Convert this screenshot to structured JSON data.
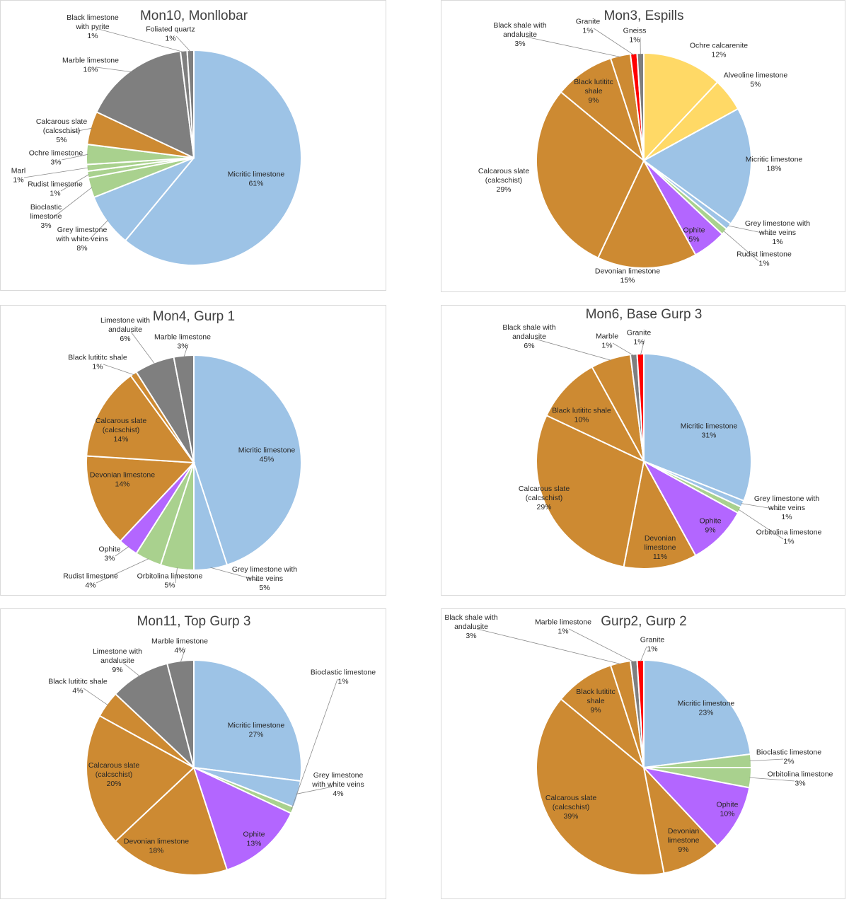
{
  "colors": {
    "blue": "#9dc3e6",
    "grey": "#7f7f7f",
    "orange": "#cd8a32",
    "green": "#a9d18e",
    "purple": "#b366ff",
    "yellow": "#ffd966",
    "red": "#ff0000"
  },
  "chart_data": [
    {
      "type": "pie",
      "title": "Mon10, Monllobar",
      "slices": [
        {
          "label": [
            "Micritic limestone"
          ],
          "value": 61,
          "pct": "61%",
          "color": "blue"
        },
        {
          "label": [
            "Grey limestone",
            "with white veins"
          ],
          "value": 8,
          "pct": "8%",
          "color": "blue"
        },
        {
          "label": [
            "Bioclastic",
            "limestone"
          ],
          "value": 3,
          "pct": "3%",
          "color": "green"
        },
        {
          "label": [
            "Rudist limestone"
          ],
          "value": 1,
          "pct": "1%",
          "color": "green"
        },
        {
          "label": [
            "Marl"
          ],
          "value": 1,
          "pct": "1%",
          "color": "green"
        },
        {
          "label": [
            "Ochre limestone"
          ],
          "value": 3,
          "pct": "3%",
          "color": "green"
        },
        {
          "label": [
            "Calcarous slate",
            "(calcschist)"
          ],
          "value": 5,
          "pct": "5%",
          "color": "orange"
        },
        {
          "label": [
            "Marble limestone"
          ],
          "value": 16,
          "pct": "16%",
          "color": "grey"
        },
        {
          "label": [
            "Black limestone",
            "with pyrite"
          ],
          "value": 1,
          "pct": "1%",
          "color": "grey"
        },
        {
          "label": [
            "Foliated quartz"
          ],
          "value": 1,
          "pct": "1%",
          "color": "grey"
        }
      ]
    },
    {
      "type": "pie",
      "title": "Mon3, Espills",
      "slices": [
        {
          "label": [
            "Ochre calcarenite"
          ],
          "value": 12,
          "pct": "12%",
          "color": "yellow"
        },
        {
          "label": [
            "Alveoline limestone"
          ],
          "value": 5,
          "pct": "5%",
          "color": "yellow"
        },
        {
          "label": [
            "Micritic limestone"
          ],
          "value": 18,
          "pct": "18%",
          "color": "blue"
        },
        {
          "label": [
            "Grey limestone with",
            "white veins"
          ],
          "value": 1,
          "pct": "1%",
          "color": "blue"
        },
        {
          "label": [
            "Rudist limestone"
          ],
          "value": 1,
          "pct": "1%",
          "color": "green"
        },
        {
          "label": [
            "Ophite"
          ],
          "value": 5,
          "pct": "5%",
          "color": "purple"
        },
        {
          "label": [
            "Devonian limestone"
          ],
          "value": 15,
          "pct": "15%",
          "color": "orange"
        },
        {
          "label": [
            "Calcarous slate",
            "(calcschist)"
          ],
          "value": 29,
          "pct": "29%",
          "color": "orange"
        },
        {
          "label": [
            "Black lutititc",
            "shale"
          ],
          "value": 9,
          "pct": "9%",
          "color": "orange"
        },
        {
          "label": [
            "Black shale with",
            "andalusite"
          ],
          "value": 3,
          "pct": "3%",
          "color": "orange"
        },
        {
          "label": [
            "Granite"
          ],
          "value": 1,
          "pct": "1%",
          "color": "red"
        },
        {
          "label": [
            "Gneiss"
          ],
          "value": 1,
          "pct": "1%",
          "color": "grey"
        }
      ]
    },
    {
      "type": "pie",
      "title": "Mon4, Gurp 1",
      "slices": [
        {
          "label": [
            "Micritic limestone"
          ],
          "value": 45,
          "pct": "45%",
          "color": "blue"
        },
        {
          "label": [
            "Grey limestone with",
            "white veins"
          ],
          "value": 5,
          "pct": "5%",
          "color": "blue"
        },
        {
          "label": [
            "Orbitolina limestone"
          ],
          "value": 5,
          "pct": "5%",
          "color": "green"
        },
        {
          "label": [
            "Rudist limestone"
          ],
          "value": 4,
          "pct": "4%",
          "color": "green"
        },
        {
          "label": [
            "Ophite"
          ],
          "value": 3,
          "pct": "3%",
          "color": "purple"
        },
        {
          "label": [
            "Devonian limestone"
          ],
          "value": 14,
          "pct": "14%",
          "color": "orange"
        },
        {
          "label": [
            "Calcarous slate",
            "(calcschist)"
          ],
          "value": 14,
          "pct": "14%",
          "color": "orange"
        },
        {
          "label": [
            "Black lutititc shale"
          ],
          "value": 1,
          "pct": "1%",
          "color": "orange"
        },
        {
          "label": [
            "Limestone with",
            "andalusite"
          ],
          "value": 6,
          "pct": "6%",
          "color": "grey"
        },
        {
          "label": [
            "Marble limestone"
          ],
          "value": 3,
          "pct": "3%",
          "color": "grey"
        }
      ]
    },
    {
      "type": "pie",
      "title": "Mon6, Base Gurp 3",
      "slices": [
        {
          "label": [
            "Micritic limestone"
          ],
          "value": 31,
          "pct": "31%",
          "color": "blue"
        },
        {
          "label": [
            "Grey limestone with",
            "white veins"
          ],
          "value": 1,
          "pct": "1%",
          "color": "blue"
        },
        {
          "label": [
            "Orbitolina limestone"
          ],
          "value": 1,
          "pct": "1%",
          "color": "green"
        },
        {
          "label": [
            "Ophite"
          ],
          "value": 9,
          "pct": "9%",
          "color": "purple"
        },
        {
          "label": [
            "Devonian",
            "limestone"
          ],
          "value": 11,
          "pct": "11%",
          "color": "orange"
        },
        {
          "label": [
            "Calcarous slate",
            "(calcschist)"
          ],
          "value": 29,
          "pct": "29%",
          "color": "orange"
        },
        {
          "label": [
            "Black lutititc shale"
          ],
          "value": 10,
          "pct": "10%",
          "color": "orange"
        },
        {
          "label": [
            "Black shale with",
            "andalusite"
          ],
          "value": 6,
          "pct": "6%",
          "color": "orange"
        },
        {
          "label": [
            "Marble"
          ],
          "value": 1,
          "pct": "1%",
          "color": "grey"
        },
        {
          "label": [
            "Granite"
          ],
          "value": 1,
          "pct": "1%",
          "color": "red"
        }
      ]
    },
    {
      "type": "pie",
      "title": "Mon11, Top Gurp 3",
      "slices": [
        {
          "label": [
            "Micritic limestone"
          ],
          "value": 27,
          "pct": "27%",
          "color": "blue"
        },
        {
          "label": [
            "Grey limestone",
            "with white veins"
          ],
          "value": 4,
          "pct": "4%",
          "color": "blue"
        },
        {
          "label": [
            "Bioclastic limestone"
          ],
          "value": 1,
          "pct": "1%",
          "color": "green"
        },
        {
          "label": [
            "Ophite"
          ],
          "value": 13,
          "pct": "13%",
          "color": "purple"
        },
        {
          "label": [
            "Devonian limestone"
          ],
          "value": 18,
          "pct": "18%",
          "color": "orange"
        },
        {
          "label": [
            "Calcarous slate",
            "(calcschist)"
          ],
          "value": 20,
          "pct": "20%",
          "color": "orange"
        },
        {
          "label": [
            "Black lutititc shale"
          ],
          "value": 4,
          "pct": "4%",
          "color": "orange"
        },
        {
          "label": [
            "Limestone with",
            "andalusite"
          ],
          "value": 9,
          "pct": "9%",
          "color": "grey"
        },
        {
          "label": [
            "Marble limestone"
          ],
          "value": 4,
          "pct": "4%",
          "color": "grey"
        }
      ]
    },
    {
      "type": "pie",
      "title": "Gurp2, Gurp 2",
      "slices": [
        {
          "label": [
            "Micritic limestone"
          ],
          "value": 23,
          "pct": "23%",
          "color": "blue"
        },
        {
          "label": [
            "Bioclastic limestone"
          ],
          "value": 2,
          "pct": "2%",
          "color": "green"
        },
        {
          "label": [
            "Orbitolina limestone"
          ],
          "value": 3,
          "pct": "3%",
          "color": "green"
        },
        {
          "label": [
            "Ophite"
          ],
          "value": 10,
          "pct": "10%",
          "color": "purple"
        },
        {
          "label": [
            "Devonian",
            "limestone"
          ],
          "value": 9,
          "pct": "9%",
          "color": "orange"
        },
        {
          "label": [
            "Calcarous slate",
            "(calcschist)"
          ],
          "value": 39,
          "pct": "39%",
          "color": "orange"
        },
        {
          "label": [
            "Black lutititc",
            "shale"
          ],
          "value": 9,
          "pct": "9%",
          "color": "orange"
        },
        {
          "label": [
            "Black shale with",
            "andalusite"
          ],
          "value": 3,
          "pct": "3%",
          "color": "orange"
        },
        {
          "label": [
            "Marble limestone"
          ],
          "value": 1,
          "pct": "1%",
          "color": "grey"
        },
        {
          "label": [
            "Granite"
          ],
          "value": 1,
          "pct": "1%",
          "color": "red"
        }
      ]
    }
  ]
}
